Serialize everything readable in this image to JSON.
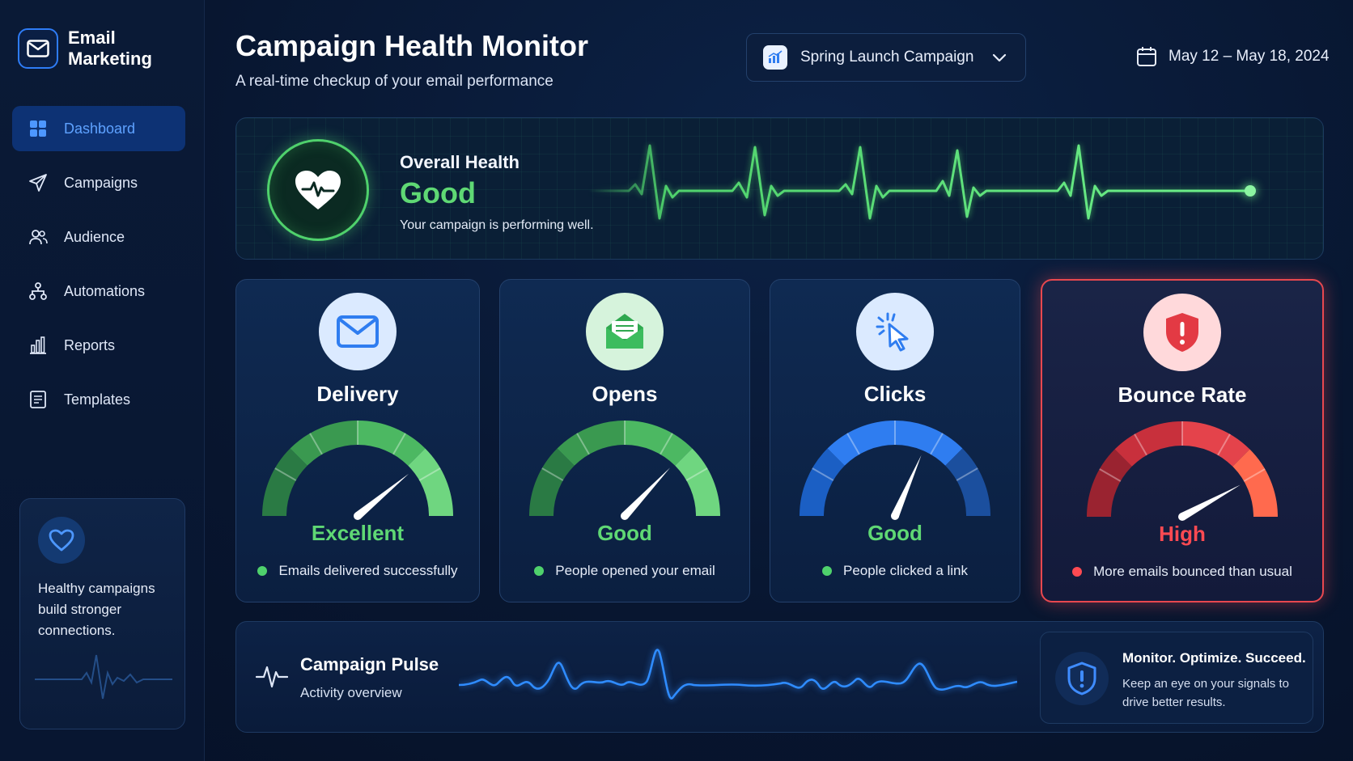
{
  "app": {
    "brand": "Email\nMarketing"
  },
  "sidebar": {
    "items": [
      {
        "label": "Dashboard",
        "icon": "grid-icon",
        "active": true
      },
      {
        "label": "Campaigns",
        "icon": "paper-plane-icon"
      },
      {
        "label": "Audience",
        "icon": "users-icon"
      },
      {
        "label": "Automations",
        "icon": "workflow-icon"
      },
      {
        "label": "Reports",
        "icon": "bar-chart-icon"
      },
      {
        "label": "Templates",
        "icon": "template-icon"
      }
    ],
    "card": {
      "text": "Healthy campaigns build stronger connections.",
      "icon": "heart-icon"
    }
  },
  "header": {
    "title": "Campaign Health Monitor",
    "subtitle": "A real-time checkup of your email performance",
    "campaign_select": {
      "value": "Spring Launch Campaign"
    },
    "date_range": "May 12 – May 18, 2024"
  },
  "overall_health": {
    "label": "Overall Health",
    "value": "Good",
    "description": "Your campaign is performing well.",
    "color": "#5fd874"
  },
  "metrics": [
    {
      "title": "Delivery",
      "status": "Excellent",
      "note": "Emails delivered successfully",
      "level": 0.78,
      "color": "#5fd874",
      "icon": "envelope-icon"
    },
    {
      "title": "Opens",
      "status": "Good",
      "note": "People opened your email",
      "level": 0.74,
      "color": "#5fd874",
      "icon": "open-envelope-icon"
    },
    {
      "title": "Clicks",
      "status": "Good",
      "note": "People clicked a link",
      "level": 0.63,
      "color": "#5fd874",
      "icon": "cursor-click-icon"
    },
    {
      "title": "Bounce Rate",
      "status": "High",
      "note": "More emails bounced than usual",
      "level": 0.84,
      "color": "#ff4a52",
      "icon": "alert-shield-icon"
    }
  ],
  "pulse": {
    "title": "Campaign Pulse",
    "subtitle": "Activity overview",
    "tip_title": "Monitor. Optimize. Succeed.",
    "tip_text": "Keep an eye on your signals to drive better results."
  }
}
